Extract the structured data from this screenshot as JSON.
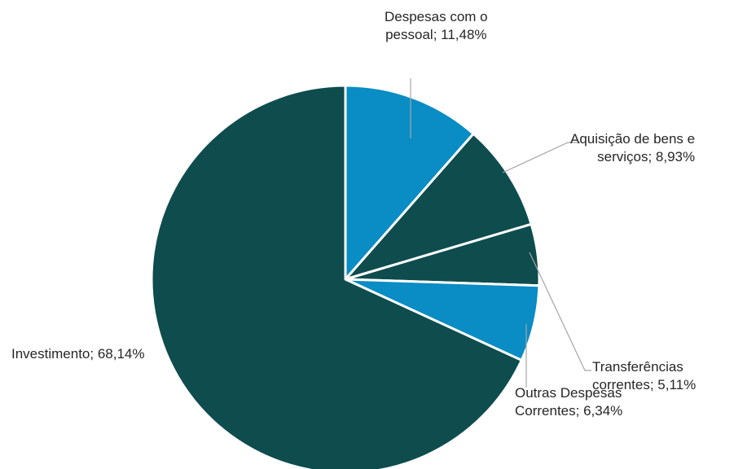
{
  "chart_data": {
    "type": "pie",
    "slices": [
      {
        "category": "Despesas com o pessoal",
        "value": 11.48,
        "label_lines": [
          "Despesas com o",
          "pessoal; 11,48%"
        ],
        "color": "#0A8CC4"
      },
      {
        "category": "Aquisição de bens e serviços",
        "value": 8.93,
        "label_lines": [
          "Aquisição de bens e",
          "serviços; 8,93%"
        ],
        "color": "#0E4C4E"
      },
      {
        "category": "Transferências correntes",
        "value": 5.11,
        "label_lines": [
          "Transferências",
          "correntes; 5,11%"
        ],
        "color": "#0E4C4E"
      },
      {
        "category": "Outras Despesas Correntes",
        "value": 6.34,
        "label_lines": [
          "Outras Despesas",
          "Correntes; 6,34%"
        ],
        "color": "#0A8CC4"
      },
      {
        "category": "Investimento",
        "value": 68.14,
        "label_lines": [
          "Investimento; 68,14%"
        ],
        "color": "#0E4C4E"
      }
    ],
    "start_angle_deg": 0,
    "direction": "clockwise",
    "slice_border_color": "#ffffff",
    "leader_line_color": "#a6a6a6"
  }
}
